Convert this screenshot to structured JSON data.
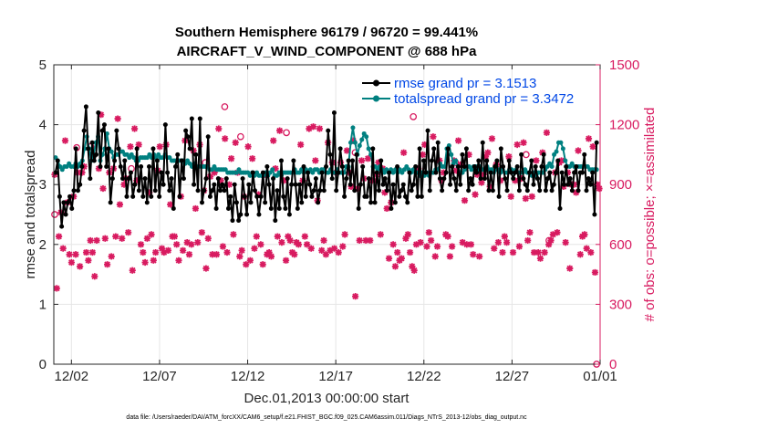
{
  "chart_data": {
    "type": "line",
    "title_line1": "Southern Hemisphere 96179 / 96720 = 99.441%",
    "title_line2": "AIRCRAFT_V_WIND_COMPONENT @ 688 hPa",
    "xlabel": "Dec.01,2013 00:00:00 start",
    "ylabel_left": "rmse and totalspread",
    "ylabel_right": "# of obs: o=possible; ×=assimilated",
    "xlim": [
      0.5,
      31.5
    ],
    "ylim_left": [
      0,
      5
    ],
    "ylim_right": [
      0,
      1500
    ],
    "x_tick_values": [
      1.5,
      6.5,
      11.5,
      16.5,
      21.5,
      26.5,
      31.5
    ],
    "x_tick_labels": [
      "12/02",
      "12/07",
      "12/12",
      "12/17",
      "12/22",
      "12/27",
      "01/01"
    ],
    "y_left_ticks": [
      "0",
      "1",
      "2",
      "3",
      "4",
      "5"
    ],
    "y_right_ticks": [
      "0",
      "300",
      "600",
      "900",
      "1200",
      "1500"
    ],
    "grid": true,
    "legend_position": "top-right",
    "colors": {
      "rmse": "#000000",
      "spread": "#008080",
      "obs": "#d81b60",
      "legend_text": "#0047e6",
      "axis": "#262626"
    },
    "series": [
      {
        "name": "rmse grand pr = 3.1513",
        "color": "#000000",
        "values": [
          3.2,
          3.4,
          2.8,
          2.3,
          2.7,
          2.5,
          2.7,
          2.8,
          2.6,
          2.9,
          3.6,
          2.9,
          3.0,
          3.3,
          3.9,
          4.3,
          3.6,
          3.1,
          3.7,
          3.4,
          3.5,
          4.2,
          3.3,
          3.9,
          4.0,
          3.3,
          3.6,
          2.7,
          3.1,
          3.4,
          3.9,
          3.6,
          3.3,
          3.1,
          3.4,
          2.8,
          3.1,
          3.2,
          2.8,
          3.0,
          3.6,
          2.9,
          3.3,
          2.8,
          3.1,
          2.7,
          3.3,
          2.8,
          3.6,
          2.9,
          3.4,
          2.8,
          3.2,
          3.0,
          4.0,
          3.2,
          2.9,
          3.1,
          2.6,
          3.3,
          3.5,
          2.8,
          3.4,
          3.1,
          3.9,
          3.8,
          3.6,
          4.1,
          3.0,
          3.5,
          2.9,
          4.1,
          2.7,
          2.9,
          3.1,
          3.8,
          2.8,
          2.9,
          3.0,
          2.6,
          3.1,
          2.9,
          3.0,
          2.9,
          3.1,
          2.6,
          2.8,
          2.4,
          3.0,
          2.7,
          2.4,
          2.5,
          3.1,
          2.8,
          2.5,
          3.0,
          2.7,
          3.2,
          2.9,
          2.8,
          2.5,
          2.8,
          3.2,
          2.7,
          3.3,
          3.0,
          2.6,
          3.1,
          2.4,
          2.9,
          2.6,
          3.4,
          2.8,
          2.6,
          3.1,
          2.5,
          3.0,
          3.4,
          3.0,
          2.6,
          3.0,
          2.7,
          3.3,
          2.8,
          3.2,
          3.0,
          2.8,
          2.9,
          3.1,
          2.7,
          2.9,
          3.2,
          2.9,
          3.3,
          3.9,
          3.5,
          3.1,
          4.2,
          2.9,
          3.2,
          3.6,
          3.3,
          2.8,
          3.1,
          3.4,
          3.0,
          3.4,
          2.9,
          3.5,
          2.6,
          3.0,
          3.3,
          2.8,
          2.8,
          3.1,
          2.7,
          3.6,
          2.7,
          3.2,
          2.9,
          3.4,
          3.0,
          3.1,
          2.9,
          3.2,
          2.6,
          3.0,
          2.7,
          3.3,
          2.8,
          2.9,
          3.0,
          2.8,
          2.7,
          3.2,
          2.9,
          3.0,
          3.3,
          2.8,
          3.6,
          2.8,
          3.4,
          3.2,
          3.9,
          2.9,
          3.4,
          3.6,
          3.2,
          3.7,
          3.1,
          2.9,
          3.1,
          3.2,
          3.6,
          3.0,
          3.3,
          3.1,
          2.9,
          3.3,
          3.0,
          3.5,
          3.3,
          3.6,
          2.9,
          3.1,
          3.0,
          3.3,
          3.2,
          3.4,
          3.1,
          3.7,
          3.1,
          3.4,
          2.9,
          3.2,
          2.9,
          3.3,
          3.4,
          2.8,
          3.6,
          3.3,
          3.1,
          2.9,
          3.4,
          3.2,
          3.1,
          3.2,
          3.3,
          2.9,
          3.5,
          3.1,
          3.0,
          2.9,
          3.2,
          3.4,
          3.0,
          3.3,
          3.1,
          2.9,
          3.3,
          3.5,
          2.9,
          3.1,
          3.2,
          2.9,
          3.0,
          3.2,
          3.4,
          2.6,
          3.2,
          3.0,
          3.3,
          3.0,
          3.1,
          2.9,
          3.2,
          3.3,
          2.9,
          3.2,
          3.2,
          3.5,
          2.9,
          3.1,
          3.0,
          3.2,
          2.5,
          3.7
        ]
      },
      {
        "name": "totalspread grand pr = 3.3472",
        "color": "#008080",
        "values": [
          3.45,
          3.4,
          3.3,
          3.25,
          3.3,
          3.3,
          3.35,
          3.3,
          3.3,
          3.35,
          3.3,
          3.35,
          3.4,
          3.6,
          3.8,
          3.6,
          3.4,
          3.5,
          3.7,
          3.8,
          3.4,
          3.5,
          3.6,
          3.85,
          3.6,
          3.55,
          3.45,
          3.5,
          3.5,
          3.55,
          3.55,
          3.5,
          3.5,
          3.45,
          3.5,
          3.45,
          3.4,
          3.4,
          3.45,
          3.45,
          3.45,
          3.45,
          3.5,
          3.45,
          3.5,
          3.45,
          3.5,
          3.45,
          3.45,
          3.5,
          3.45,
          3.45,
          3.4,
          3.4,
          3.4,
          3.4,
          3.4,
          3.4,
          3.35,
          3.4,
          3.35,
          3.3,
          3.35,
          3.3,
          3.3,
          3.3,
          3.3,
          3.3,
          3.3,
          3.25,
          3.25,
          3.3,
          3.25,
          3.25,
          3.25,
          3.25,
          3.25,
          3.2,
          3.2,
          3.2,
          3.2,
          3.2,
          3.25,
          3.2,
          3.2,
          3.2,
          3.2,
          3.15,
          3.2,
          3.15,
          3.2,
          3.15,
          3.15,
          3.15,
          3.2,
          3.15,
          3.2,
          3.25,
          3.15,
          3.15,
          3.2,
          3.15,
          3.2,
          3.2,
          3.2,
          3.2,
          3.2,
          3.25,
          3.2,
          3.2,
          3.25,
          3.2,
          3.25,
          3.2,
          3.25,
          3.2,
          3.25,
          3.25,
          3.2,
          3.25,
          3.25,
          3.2,
          3.2,
          3.25,
          3.2,
          3.2,
          3.25,
          3.2,
          3.2,
          3.2,
          3.3,
          3.3,
          3.7,
          3.95,
          3.7,
          3.5,
          3.65,
          3.75,
          3.85,
          3.8,
          3.6,
          3.5,
          3.3,
          3.3,
          3.25,
          3.3,
          3.25,
          3.2,
          3.25,
          3.2,
          3.25,
          3.2,
          3.25,
          3.2,
          3.25,
          3.2,
          3.25,
          3.3,
          3.25,
          3.2,
          3.25,
          3.2,
          3.2,
          3.15,
          3.2,
          3.15,
          3.2,
          3.15,
          3.2,
          3.2,
          3.25,
          3.25,
          3.35,
          3.3,
          3.3,
          3.6,
          3.65,
          3.5,
          3.35,
          3.4,
          3.3,
          3.2,
          3.2,
          3.25,
          3.3,
          3.3,
          3.25,
          3.3,
          3.3,
          3.25,
          3.3,
          3.25,
          3.25,
          3.3,
          3.25,
          3.25,
          3.2,
          3.25,
          3.25,
          3.2,
          3.25,
          3.2,
          3.2,
          3.25,
          3.25,
          3.2,
          3.25,
          3.2,
          3.2,
          3.2,
          3.25,
          3.2,
          3.2,
          3.15,
          3.2,
          3.15,
          3.2,
          3.2,
          3.2,
          3.25,
          3.3,
          3.35,
          3.3,
          3.5,
          3.55,
          3.7,
          3.7,
          3.6,
          3.4,
          3.3,
          3.3,
          3.35,
          3.3,
          3.3,
          3.3,
          3.3,
          3.3,
          3.3,
          3.3,
          3.25,
          3.25,
          3.25,
          3.25
        ]
      }
    ],
    "obs_assimilated": [
      950,
      380,
      640,
      760,
      580,
      1120,
      810,
      550,
      510,
      840,
      550,
      960,
      490,
      960,
      990,
      560,
      520,
      620,
      560,
      440,
      620,
      980,
      1250,
      880,
      630,
      500,
      960,
      540,
      980,
      640,
      1230,
      800,
      630,
      900,
      930,
      660,
      1090,
      470,
      1180,
      920,
      1100,
      600,
      560,
      510,
      630,
      860,
      650,
      520,
      560,
      970,
      1090,
      580,
      560,
      1100,
      570,
      800,
      640,
      640,
      600,
      520,
      840,
      570,
      1120,
      610,
      550,
      600,
      1070,
      780,
      610,
      1100,
      660,
      870,
      480,
      630,
      940,
      550,
      960,
      550,
      1180,
      920,
      590,
      1130,
      560,
      900,
      1030,
      650,
      1110,
      960,
      540,
      570,
      840,
      500,
      1090,
      520,
      1030,
      580,
      640,
      850,
      600,
      500,
      950,
      550,
      560,
      540,
      1120,
      980,
      640,
      1170,
      610,
      920,
      520,
      640,
      620,
      560,
      550,
      610,
      600,
      1100,
      920,
      640,
      600,
      1180,
      580,
      1190,
      1020,
      820,
      1180,
      570,
      620,
      550,
      1110,
      570,
      1010,
      580,
      960,
      560,
      1010,
      590,
      650,
      1070,
      960,
      890,
      1120,
      340,
      880,
      620,
      1020,
      930,
      620,
      1030,
      620,
      920,
      920,
      950,
      1010,
      650,
      980,
      860,
      780,
      530,
      810,
      600,
      490,
      560,
      520,
      530,
      1060,
      630,
      650,
      560,
      490,
      470,
      600,
      980,
      610,
      1050,
      1100,
      590,
      660,
      620,
      1140,
      540,
      590,
      1020,
      920,
      960,
      650,
      640,
      540,
      590,
      1020,
      970,
      1120,
      1000,
      610,
      820,
      600,
      1050,
      600,
      550,
      850,
      950,
      540,
      910,
      950,
      1040,
      1060,
      890,
      1130,
      580,
      1000,
      610,
      920,
      560,
      640,
      610,
      1040,
      840,
      560,
      920,
      1100,
      590,
      930,
      1110,
      830,
      620,
      660,
      840,
      560,
      1020,
      560,
      530,
      1060,
      560,
      1160,
      600,
      620,
      650,
      960,
      660,
      1010,
      1020,
      890,
      610,
      960,
      480,
      900,
      900,
      860,
      1070,
      550,
      640,
      650,
      580,
      1130,
      560,
      1090,
      460,
      900,
      880
    ],
    "obs_possible_circles": [
      [
        0.55,
        750
      ],
      [
        1.8,
        1085
      ],
      [
        2.6,
        1090
      ],
      [
        4.9,
        980
      ],
      [
        9.1,
        1010
      ],
      [
        10.2,
        1290
      ],
      [
        11.1,
        1140
      ],
      [
        13.7,
        1160
      ],
      [
        17.6,
        1060
      ],
      [
        20.9,
        1240
      ],
      [
        23.3,
        1010
      ],
      [
        27.3,
        1050
      ],
      [
        28.6,
        620
      ],
      [
        31.3,
        0
      ]
    ]
  },
  "footnote": "data file: /Users/raeder/DAI/ATM_forcXX/CAM6_setup/f.e21.FHIST_BGC.f09_025.CAM6assim.011/Diags_NTrS_2013-12/obs_diag_output.nc"
}
